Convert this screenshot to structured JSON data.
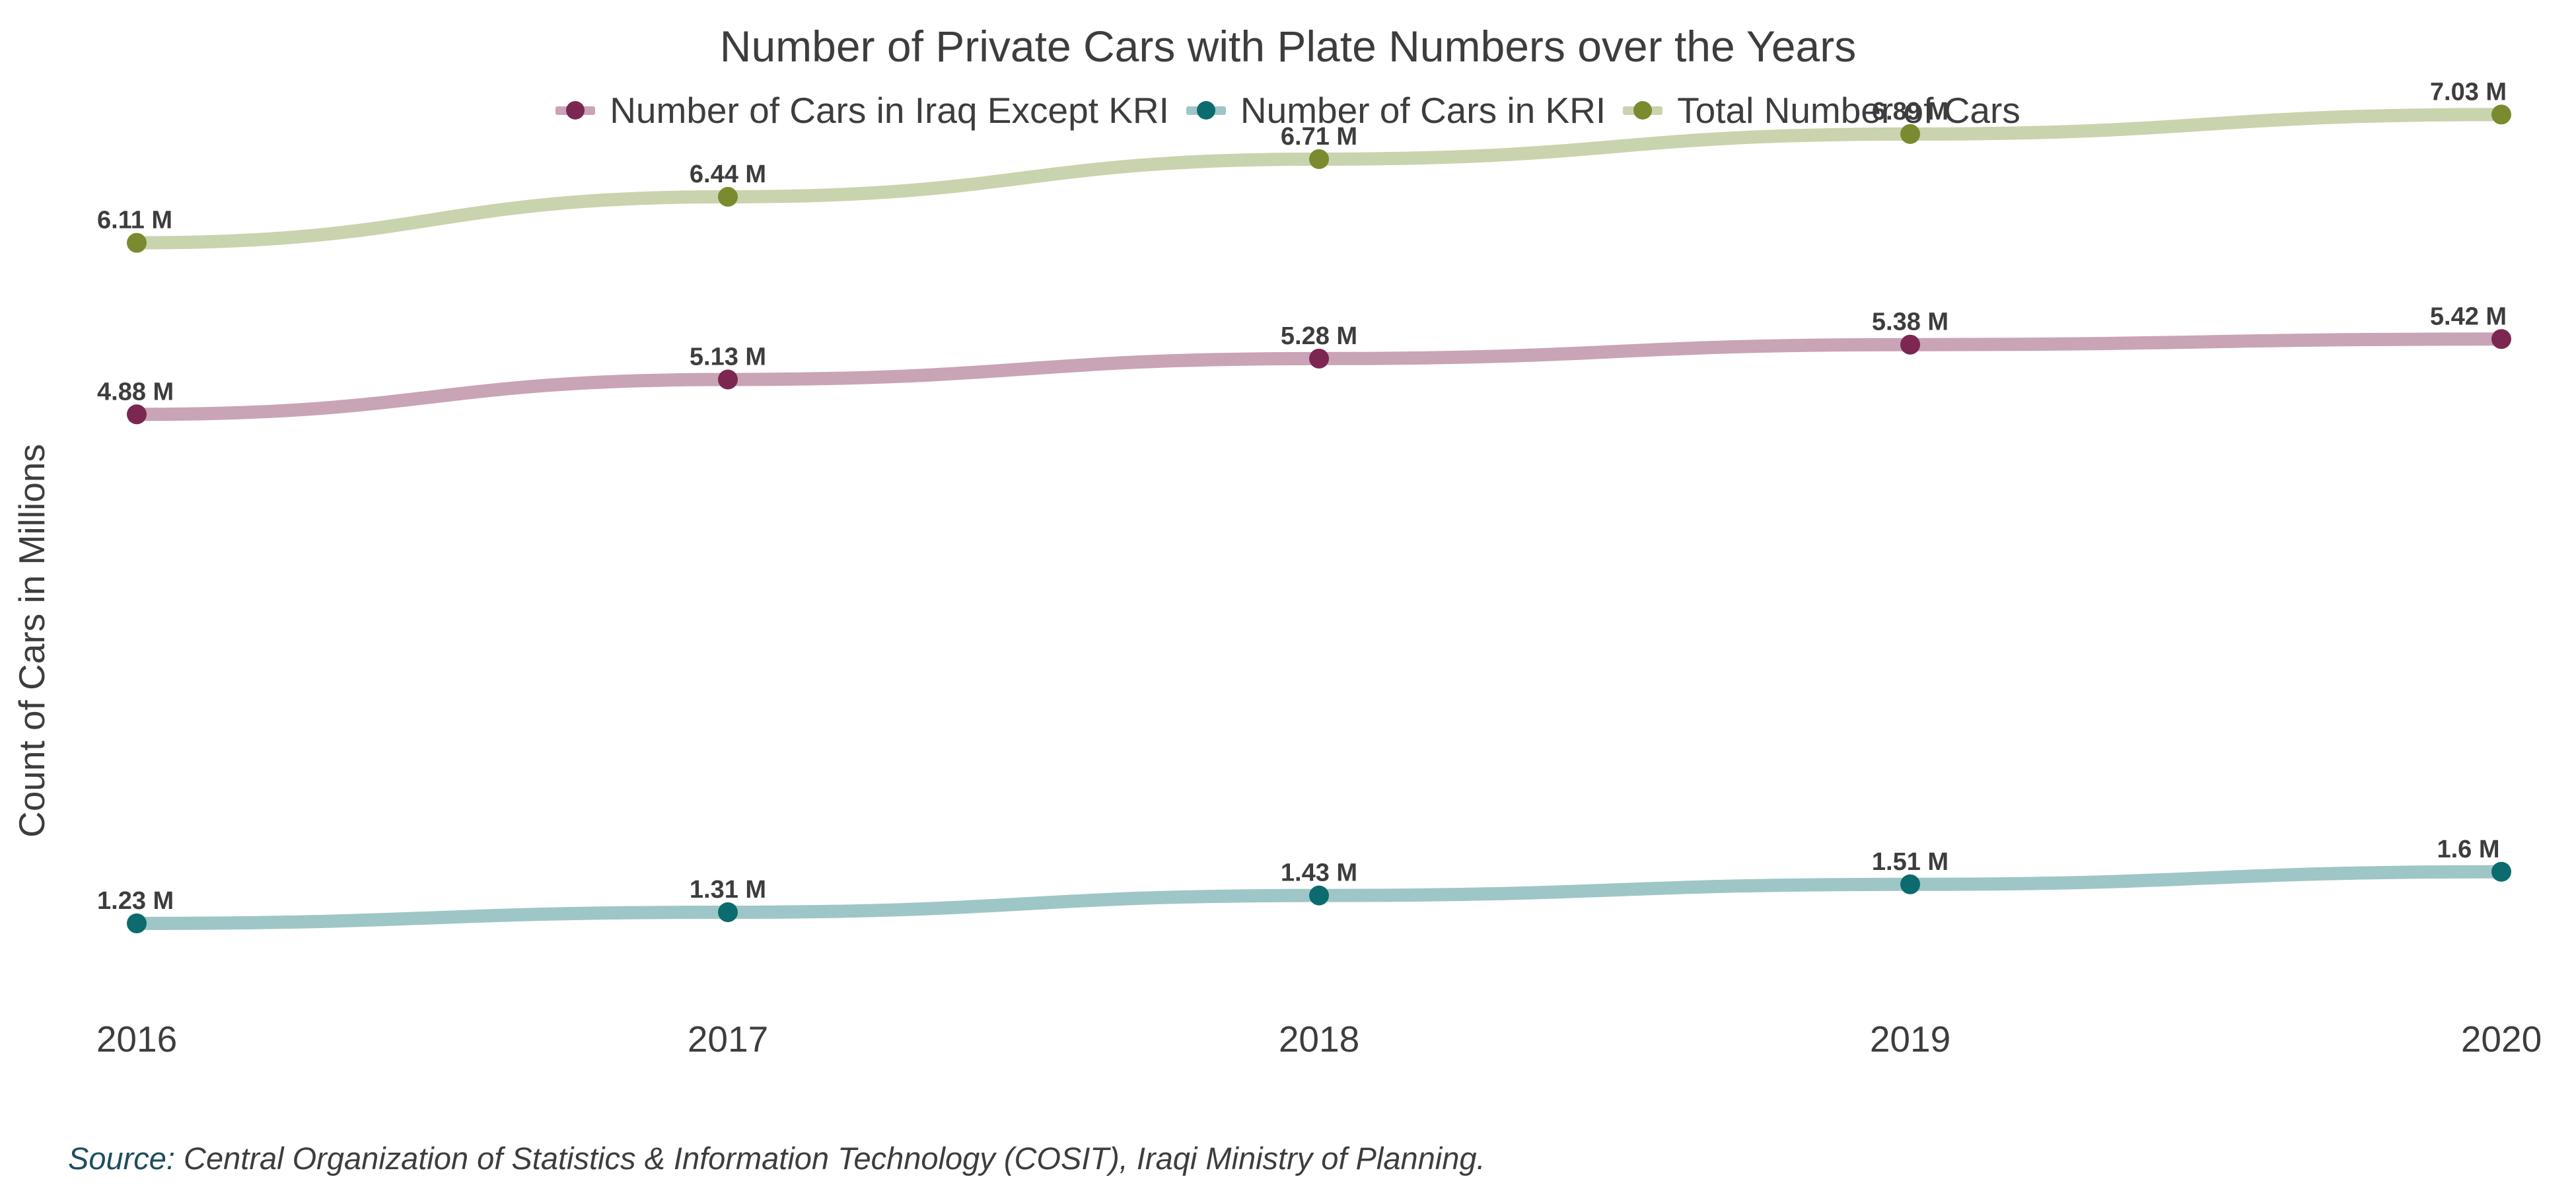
{
  "chart_data": {
    "type": "line",
    "title": "Number of Private Cars with Plate Numbers over the Years",
    "ylabel": "Count of Cars in Millions",
    "xlabel": "",
    "x": [
      "2016",
      "2017",
      "2018",
      "2019",
      "2020"
    ],
    "ylim": [
      1.0,
      7.3
    ],
    "grid": false,
    "legend_position": "top",
    "series": [
      {
        "name": "Number of Cars in Iraq Except KRI",
        "values": [
          4.88,
          5.13,
          5.28,
          5.38,
          5.42
        ],
        "labels": [
          "4.88 M",
          "5.13 M",
          "5.28 M",
          "5.38 M",
          "5.42 M"
        ],
        "line_color": "#c9a3b6",
        "point_color": "#7b2752"
      },
      {
        "name": "Number of Cars in KRI",
        "values": [
          1.23,
          1.31,
          1.43,
          1.51,
          1.6
        ],
        "labels": [
          "1.23 M",
          "1.31 M",
          "1.43 M",
          "1.51 M",
          "1.6 M"
        ],
        "line_color": "#9ec6c6",
        "point_color": "#0b6b6e"
      },
      {
        "name": "Total Number of Cars",
        "values": [
          6.11,
          6.44,
          6.71,
          6.89,
          7.03
        ],
        "labels": [
          "6.11 M",
          "6.44 M",
          "6.71 M",
          "6.89 M",
          "7.03 M"
        ],
        "line_color": "#c9d3ad",
        "point_color": "#7a8b2f"
      }
    ],
    "source_prefix": "Source:",
    "source_text": " Central Organization of Statistics & Information Technology (COSIT), Iraqi Ministry of Planning."
  }
}
